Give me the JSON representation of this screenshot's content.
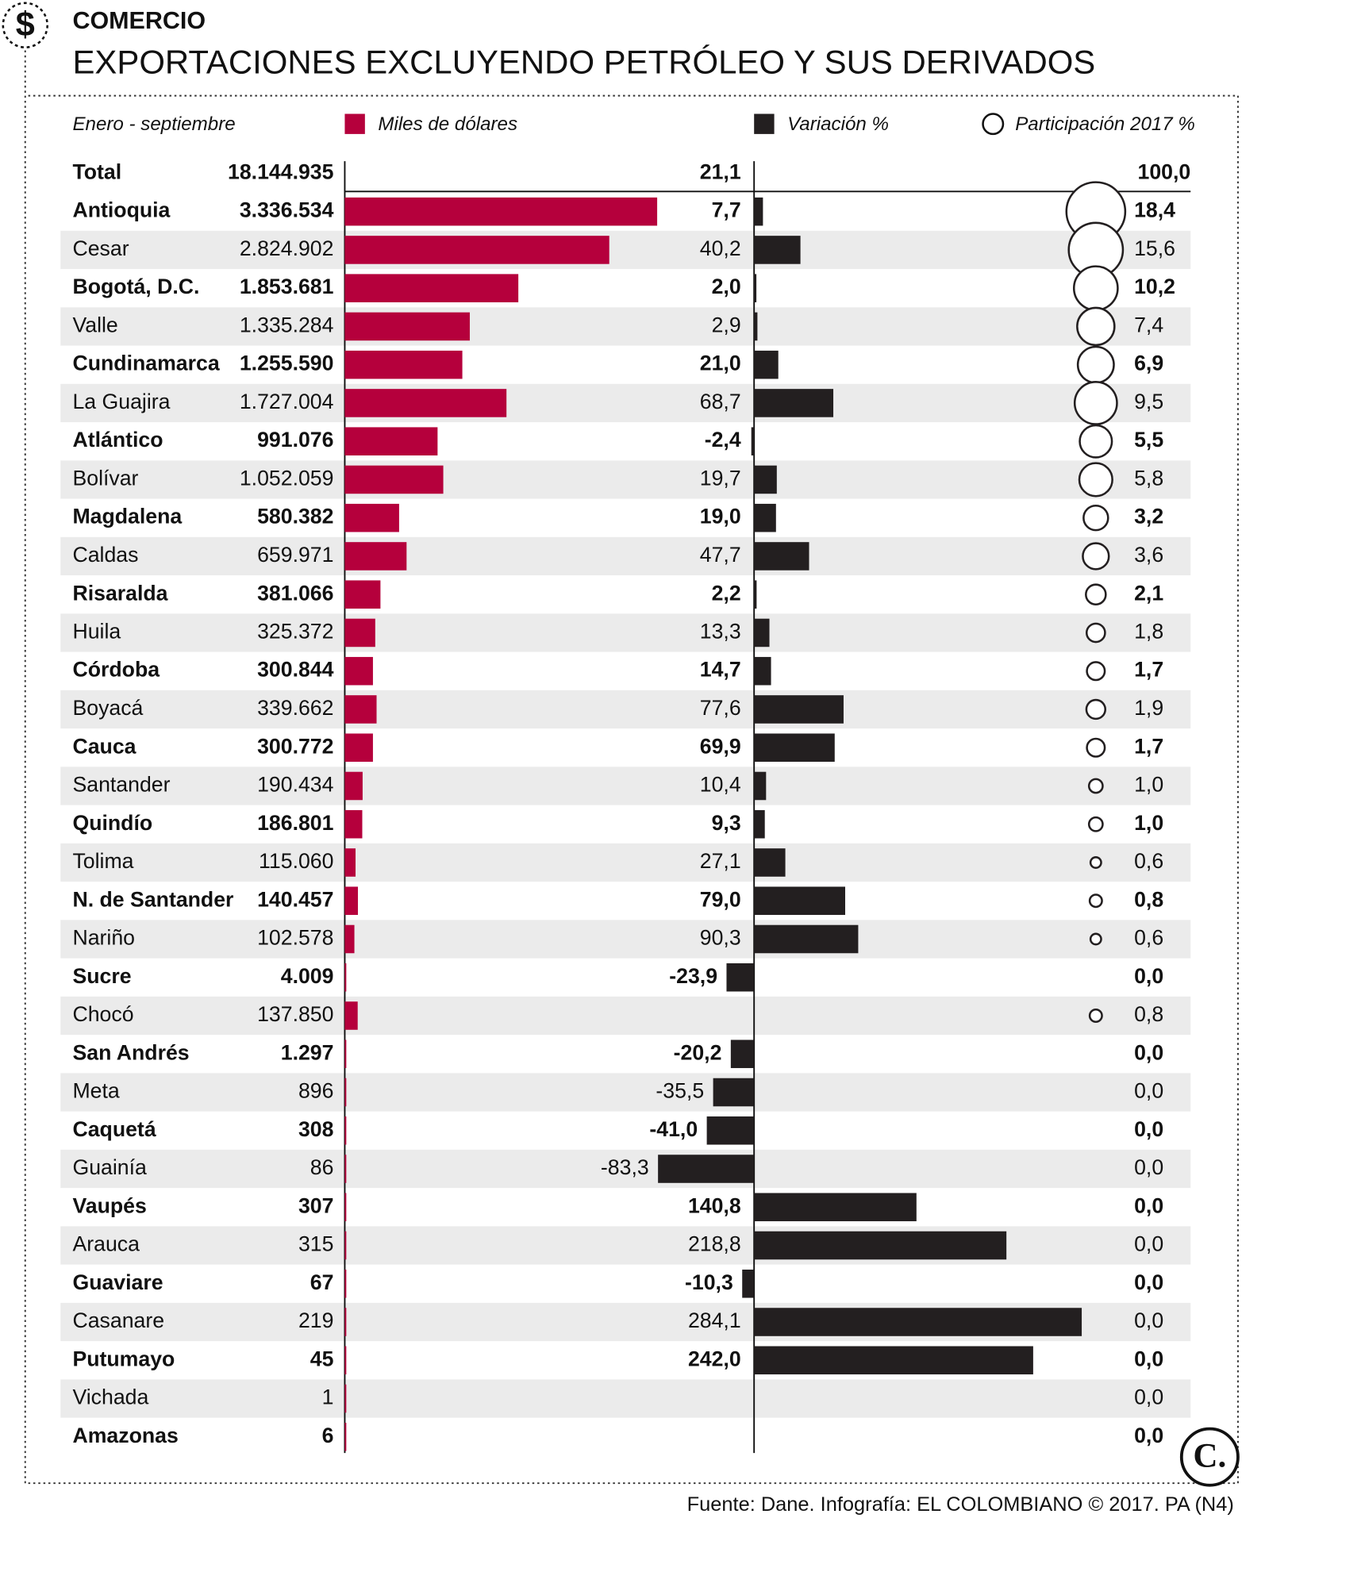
{
  "chart_data": {
    "type": "bar",
    "kicker": "COMERCIO",
    "icon": "$",
    "title": "EXPORTACIONES EXCLUYENDO PETRÓLEO Y SUS DERIVADOS",
    "subtitle": "Enero - septiembre",
    "source": "Fuente: Dane. Infografía: EL COLOMBIANO © 2017. PA (N4)",
    "logo": "C.",
    "total_label": "Total",
    "categories": [
      "Antioquia",
      "Cesar",
      "Bogotá, D.C.",
      "Valle",
      "Cundinamarca",
      "La Guajira",
      "Atlántico",
      "Bolívar",
      "Magdalena",
      "Caldas",
      "Risaralda",
      "Huila",
      "Córdoba",
      "Boyacá",
      "Cauca",
      "Santander",
      "Quindío",
      "Tolima",
      "N. de Santander",
      "Nariño",
      "Sucre",
      "Chocó",
      "San Andrés",
      "Meta",
      "Caquetá",
      "Guainía",
      "Vaupés",
      "Arauca",
      "Guaviare",
      "Casanare",
      "Putumayo",
      "Vichada",
      "Amazonas"
    ],
    "series": [
      {
        "name": "Miles de dólares",
        "color": "#b5003c",
        "total": 18144935,
        "total_label": "18.144.935",
        "values": [
          3336534,
          2824902,
          1853681,
          1335284,
          1255590,
          1727004,
          991076,
          1052059,
          580382,
          659971,
          381066,
          325372,
          300844,
          339662,
          300772,
          190434,
          186801,
          115060,
          140457,
          102578,
          4009,
          137850,
          1297,
          896,
          308,
          86,
          307,
          315,
          67,
          219,
          45,
          1,
          6
        ],
        "value_labels": [
          "3.336.534",
          "2.824.902",
          "1.853.681",
          "1.335.284",
          "1.255.590",
          "1.727.004",
          "991.076",
          "1.052.059",
          "580.382",
          "659.971",
          "381.066",
          "325.372",
          "300.844",
          "339.662",
          "300.772",
          "190.434",
          "186.801",
          "115.060",
          "140.457",
          "102.578",
          "4.009",
          "137.850",
          "1.297",
          "896",
          "308",
          "86",
          "307",
          "315",
          "67",
          "219",
          "45",
          "1",
          "6"
        ]
      },
      {
        "name": "Variación %",
        "color": "#231f20",
        "total": 21.1,
        "total_label": "21,1",
        "values": [
          7.7,
          40.2,
          2.0,
          2.9,
          21.0,
          68.7,
          -2.4,
          19.7,
          19.0,
          47.7,
          2.2,
          13.3,
          14.7,
          77.6,
          69.9,
          10.4,
          9.3,
          27.1,
          79.0,
          90.3,
          -23.9,
          null,
          -20.2,
          -35.5,
          -41.0,
          -83.3,
          140.8,
          218.8,
          -10.3,
          284.1,
          242.0,
          null,
          null
        ],
        "value_labels": [
          "7,7",
          "40,2",
          "2,0",
          "2,9",
          "21,0",
          "68,7",
          "-2,4",
          "19,7",
          "19,0",
          "47,7",
          "2,2",
          "13,3",
          "14,7",
          "77,6",
          "69,9",
          "10,4",
          "9,3",
          "27,1",
          "79,0",
          "90,3",
          "-23,9",
          null,
          "-20,2",
          "-35,5",
          "-41,0",
          "-83,3",
          "140,8",
          "218,8",
          "-10,3",
          "284,1",
          "242,0",
          null,
          null
        ]
      },
      {
        "name": "Participación 2017 %",
        "color": "#231f20",
        "total": 100.0,
        "total_label": "100,0",
        "values": [
          18.4,
          15.6,
          10.2,
          7.4,
          6.9,
          9.5,
          5.5,
          5.8,
          3.2,
          3.6,
          2.1,
          1.8,
          1.7,
          1.9,
          1.7,
          1.0,
          1.0,
          0.6,
          0.8,
          0.6,
          0.0,
          0.8,
          0.0,
          0.0,
          0.0,
          0.0,
          0.0,
          0.0,
          0.0,
          0.0,
          0.0,
          0.0,
          0.0
        ],
        "value_labels": [
          "18,4",
          "15,6",
          "10,2",
          "7,4",
          "6,9",
          "9,5",
          "5,5",
          "5,8",
          "3,2",
          "3,6",
          "2,1",
          "1,8",
          "1,7",
          "1,9",
          "1,7",
          "1,0",
          "1,0",
          "0,6",
          "0,8",
          "0,6",
          "0,0",
          "0,8",
          "0,0",
          "0,0",
          "0,0",
          "0,0",
          "0,0",
          "0,0",
          "0,0",
          "0,0",
          "0,0",
          "0,0",
          "0,0"
        ]
      }
    ]
  }
}
